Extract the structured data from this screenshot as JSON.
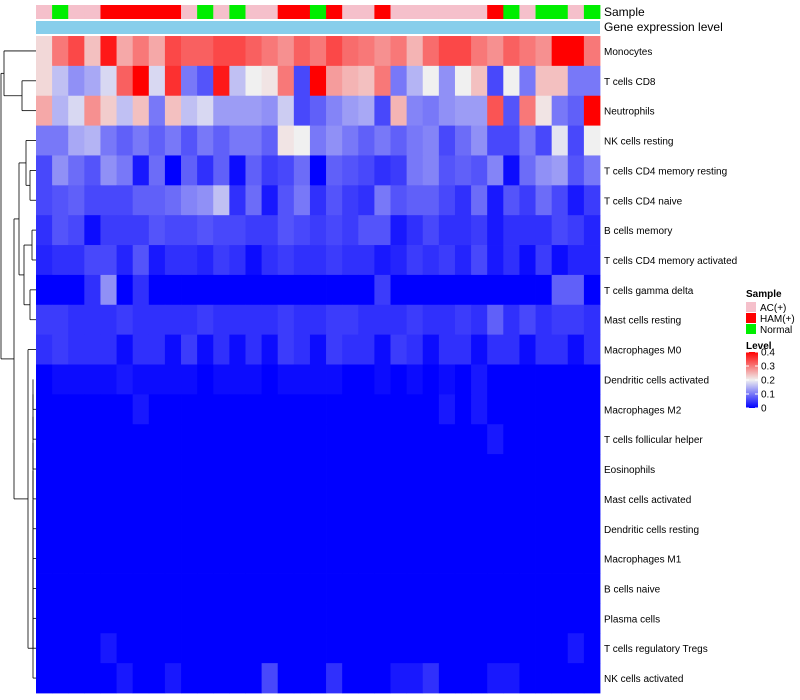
{
  "chart_data": {
    "type": "heatmap",
    "title": "",
    "annotation_tracks": [
      "Sample",
      "Gene expression level"
    ],
    "row_labels": [
      "Monocytes",
      "T cells CD8",
      "Neutrophils",
      "NK cells resting",
      "T cells CD4 memory resting",
      "T cells CD4 naive",
      "B cells memory",
      "T cells CD4 memory activated",
      "T cells gamma delta",
      "Mast cells resting",
      "Macrophages M0",
      "Dendritic cells activated",
      "Macrophages M2",
      "T cells follicular helper",
      "Eosinophils",
      "Mast cells activated",
      "Dendritic cells resting",
      "Macrophages M1",
      "B cells naive",
      "Plasma cells",
      "T cells regulatory  Tregs",
      "NK cells activated"
    ],
    "sample_groups": [
      "AC(+)",
      "Normal",
      "AC(+)",
      "AC(+)",
      "HAM(+)",
      "HAM(+)",
      "HAM(+)",
      "HAM(+)",
      "HAM(+)",
      "AC(+)",
      "Normal",
      "AC(+)",
      "Normal",
      "AC(+)",
      "AC(+)",
      "HAM(+)",
      "HAM(+)",
      "Normal",
      "HAM(+)",
      "AC(+)",
      "AC(+)",
      "HAM(+)",
      "AC(+)",
      "AC(+)",
      "AC(+)",
      "AC(+)",
      "AC(+)",
      "AC(+)",
      "HAM(+)",
      "Normal",
      "AC(+)",
      "Normal",
      "Normal",
      "AC(+)",
      "Normal"
    ],
    "values": [
      [
        0.22,
        0.3,
        0.34,
        0.24,
        0.38,
        0.26,
        0.3,
        0.26,
        0.34,
        0.32,
        0.32,
        0.34,
        0.34,
        0.32,
        0.3,
        0.28,
        0.32,
        0.3,
        0.34,
        0.31,
        0.3,
        0.28,
        0.3,
        0.25,
        0.31,
        0.34,
        0.34,
        0.3,
        0.28,
        0.32,
        0.3,
        0.28,
        0.4,
        0.4,
        0.3
      ],
      [
        0.22,
        0.16,
        0.12,
        0.14,
        0.18,
        0.32,
        0.4,
        0.18,
        0.36,
        0.1,
        0.07,
        0.38,
        0.16,
        0.2,
        0.21,
        0.3,
        0.06,
        0.4,
        0.27,
        0.25,
        0.24,
        0.3,
        0.1,
        0.15,
        0.2,
        0.12,
        0.2,
        0.24,
        0.06,
        0.2,
        0.1,
        0.24,
        0.24,
        0.1,
        0.1
      ],
      [
        0.26,
        0.15,
        0.18,
        0.28,
        0.23,
        0.16,
        0.24,
        0.1,
        0.24,
        0.16,
        0.18,
        0.13,
        0.13,
        0.13,
        0.12,
        0.17,
        0.06,
        0.08,
        0.11,
        0.13,
        0.14,
        0.06,
        0.25,
        0.11,
        0.1,
        0.12,
        0.13,
        0.13,
        0.33,
        0.07,
        0.3,
        0.21,
        0.1,
        0.08,
        0.4
      ],
      [
        0.1,
        0.1,
        0.14,
        0.15,
        0.1,
        0.08,
        0.1,
        0.08,
        0.1,
        0.07,
        0.1,
        0.08,
        0.1,
        0.1,
        0.08,
        0.21,
        0.2,
        0.1,
        0.12,
        0.1,
        0.08,
        0.1,
        0.08,
        0.1,
        0.11,
        0.06,
        0.09,
        0.12,
        0.06,
        0.06,
        0.1,
        0.06,
        0.19,
        0.06,
        0.2
      ],
      [
        0.06,
        0.12,
        0.09,
        0.07,
        0.12,
        0.1,
        0.02,
        0.09,
        0.0,
        0.08,
        0.04,
        0.08,
        0.01,
        0.08,
        0.05,
        0.06,
        0.09,
        0.0,
        0.08,
        0.07,
        0.06,
        0.04,
        0.05,
        0.1,
        0.11,
        0.07,
        0.08,
        0.07,
        0.11,
        0.01,
        0.09,
        0.12,
        0.13,
        0.07,
        0.1
      ],
      [
        0.06,
        0.07,
        0.08,
        0.06,
        0.06,
        0.06,
        0.08,
        0.08,
        0.09,
        0.11,
        0.12,
        0.16,
        0.04,
        0.09,
        0.02,
        0.07,
        0.1,
        0.04,
        0.07,
        0.05,
        0.04,
        0.1,
        0.07,
        0.08,
        0.08,
        0.06,
        0.04,
        0.09,
        0.02,
        0.07,
        0.05,
        0.09,
        0.06,
        0.02,
        0.05
      ],
      [
        0.04,
        0.07,
        0.06,
        0.01,
        0.05,
        0.05,
        0.05,
        0.07,
        0.06,
        0.06,
        0.07,
        0.06,
        0.06,
        0.05,
        0.05,
        0.07,
        0.06,
        0.05,
        0.06,
        0.05,
        0.07,
        0.07,
        0.02,
        0.04,
        0.06,
        0.04,
        0.04,
        0.05,
        0.02,
        0.04,
        0.04,
        0.04,
        0.06,
        0.05,
        0.03
      ],
      [
        0.03,
        0.04,
        0.04,
        0.06,
        0.06,
        0.03,
        0.07,
        0.02,
        0.04,
        0.04,
        0.03,
        0.05,
        0.04,
        0.01,
        0.04,
        0.05,
        0.04,
        0.04,
        0.05,
        0.04,
        0.04,
        0.02,
        0.03,
        0.05,
        0.04,
        0.05,
        0.03,
        0.06,
        0.02,
        0.04,
        0.01,
        0.05,
        0.01,
        0.03,
        0.03
      ],
      [
        0.0,
        0.0,
        0.0,
        0.04,
        0.12,
        0.0,
        0.04,
        0.0,
        0.0,
        0.0,
        0.0,
        0.0,
        0.0,
        0.0,
        0.0,
        0.0,
        0.0,
        0.0,
        0.0,
        0.0,
        0.0,
        0.05,
        0.0,
        0.0,
        0.0,
        0.0,
        0.0,
        0.0,
        0.0,
        0.0,
        0.0,
        0.0,
        0.08,
        0.08,
        0.0
      ],
      [
        0.05,
        0.05,
        0.04,
        0.04,
        0.04,
        0.05,
        0.04,
        0.04,
        0.04,
        0.04,
        0.05,
        0.04,
        0.04,
        0.04,
        0.04,
        0.05,
        0.04,
        0.04,
        0.05,
        0.05,
        0.04,
        0.04,
        0.04,
        0.05,
        0.04,
        0.04,
        0.05,
        0.04,
        0.08,
        0.04,
        0.06,
        0.04,
        0.05,
        0.05,
        0.04
      ],
      [
        0.04,
        0.05,
        0.04,
        0.04,
        0.04,
        0.01,
        0.04,
        0.04,
        0.01,
        0.05,
        0.01,
        0.04,
        0.01,
        0.04,
        0.01,
        0.05,
        0.04,
        0.01,
        0.05,
        0.04,
        0.04,
        0.01,
        0.05,
        0.04,
        0.01,
        0.04,
        0.04,
        0.01,
        0.04,
        0.04,
        0.01,
        0.04,
        0.04,
        0.01,
        0.04
      ],
      [
        0.0,
        0.01,
        0.01,
        0.01,
        0.01,
        0.02,
        0.01,
        0.01,
        0.01,
        0.01,
        0.0,
        0.01,
        0.01,
        0.01,
        0.0,
        0.01,
        0.01,
        0.01,
        0.01,
        0.0,
        0.0,
        0.01,
        0.0,
        0.01,
        0.0,
        0.01,
        0.0,
        0.02,
        0.0,
        0.0,
        0.0,
        0.0,
        0.0,
        0.0,
        0.0
      ],
      [
        0.0,
        0.0,
        0.0,
        0.0,
        0.0,
        0.0,
        0.02,
        0.0,
        0.0,
        0.0,
        0.0,
        0.0,
        0.0,
        0.0,
        0.0,
        0.0,
        0.0,
        0.0,
        0.0,
        0.0,
        0.0,
        0.0,
        0.0,
        0.0,
        0.0,
        0.02,
        0.0,
        0.02,
        0.0,
        0.0,
        0.0,
        0.0,
        0.0,
        0.0,
        0.0
      ],
      [
        0.0,
        0.0,
        0.0,
        0.0,
        0.0,
        0.0,
        0.0,
        0.0,
        0.0,
        0.0,
        0.0,
        0.0,
        0.0,
        0.0,
        0.0,
        0.0,
        0.0,
        0.0,
        0.0,
        0.0,
        0.0,
        0.0,
        0.0,
        0.0,
        0.0,
        0.0,
        0.0,
        0.0,
        0.02,
        0.0,
        0.0,
        0.0,
        0.0,
        0.0,
        0.0
      ],
      [
        0.0,
        0.0,
        0.0,
        0.0,
        0.0,
        0.0,
        0.0,
        0.0,
        0.0,
        0.0,
        0.0,
        0.0,
        0.0,
        0.0,
        0.0,
        0.0,
        0.0,
        0.0,
        0.0,
        0.0,
        0.0,
        0.0,
        0.0,
        0.0,
        0.0,
        0.0,
        0.0,
        0.0,
        0.0,
        0.0,
        0.0,
        0.0,
        0.0,
        0.0,
        0.0
      ],
      [
        0.0,
        0.0,
        0.0,
        0.0,
        0.0,
        0.0,
        0.0,
        0.0,
        0.0,
        0.0,
        0.0,
        0.0,
        0.0,
        0.0,
        0.0,
        0.0,
        0.0,
        0.0,
        0.0,
        0.0,
        0.0,
        0.0,
        0.0,
        0.0,
        0.0,
        0.0,
        0.0,
        0.0,
        0.0,
        0.0,
        0.0,
        0.0,
        0.0,
        0.0,
        0.0
      ],
      [
        0.0,
        0.0,
        0.0,
        0.0,
        0.0,
        0.0,
        0.0,
        0.0,
        0.0,
        0.0,
        0.0,
        0.0,
        0.0,
        0.0,
        0.0,
        0.0,
        0.0,
        0.0,
        0.0,
        0.0,
        0.0,
        0.0,
        0.0,
        0.0,
        0.0,
        0.0,
        0.0,
        0.0,
        0.0,
        0.0,
        0.0,
        0.0,
        0.0,
        0.0,
        0.0
      ],
      [
        0.0,
        0.0,
        0.0,
        0.0,
        0.0,
        0.0,
        0.0,
        0.0,
        0.0,
        0.0,
        0.0,
        0.0,
        0.0,
        0.0,
        0.0,
        0.0,
        0.0,
        0.0,
        0.0,
        0.0,
        0.0,
        0.0,
        0.0,
        0.0,
        0.0,
        0.0,
        0.0,
        0.0,
        0.0,
        0.0,
        0.0,
        0.0,
        0.0,
        0.0,
        0.0
      ],
      [
        0.0,
        0.0,
        0.0,
        0.0,
        0.0,
        0.0,
        0.0,
        0.0,
        0.0,
        0.0,
        0.0,
        0.0,
        0.0,
        0.0,
        0.0,
        0.0,
        0.0,
        0.0,
        0.0,
        0.0,
        0.0,
        0.0,
        0.0,
        0.0,
        0.0,
        0.0,
        0.0,
        0.0,
        0.0,
        0.0,
        0.0,
        0.0,
        0.0,
        0.0,
        0.0
      ],
      [
        0.0,
        0.0,
        0.0,
        0.0,
        0.0,
        0.0,
        0.0,
        0.0,
        0.0,
        0.0,
        0.0,
        0.0,
        0.0,
        0.0,
        0.0,
        0.0,
        0.0,
        0.0,
        0.0,
        0.0,
        0.0,
        0.0,
        0.0,
        0.0,
        0.0,
        0.0,
        0.0,
        0.0,
        0.0,
        0.0,
        0.0,
        0.0,
        0.0,
        0.0,
        0.0
      ],
      [
        0.0,
        0.0,
        0.0,
        0.0,
        0.02,
        0.0,
        0.0,
        0.0,
        0.0,
        0.0,
        0.0,
        0.0,
        0.0,
        0.0,
        0.0,
        0.0,
        0.0,
        0.0,
        0.0,
        0.0,
        0.0,
        0.0,
        0.0,
        0.0,
        0.0,
        0.0,
        0.0,
        0.0,
        0.0,
        0.0,
        0.0,
        0.0,
        0.0,
        0.02,
        0.0
      ],
      [
        0.0,
        0.0,
        0.0,
        0.0,
        0.0,
        0.02,
        0.0,
        0.0,
        0.02,
        0.0,
        0.0,
        0.0,
        0.0,
        0.0,
        0.06,
        0.0,
        0.0,
        0.0,
        0.04,
        0.0,
        0.0,
        0.0,
        0.02,
        0.02,
        0.04,
        0.0,
        0.0,
        0.0,
        0.02,
        0.02,
        0.0,
        0.0,
        0.0,
        0.0,
        0.0
      ]
    ],
    "legend": {
      "sample_title": "Sample",
      "sample_entries": [
        {
          "label": "AC(+)",
          "color": "#f5c0cb"
        },
        {
          "label": "HAM(+)",
          "color": "#ff0000"
        },
        {
          "label": "Normal",
          "color": "#00ee00"
        }
      ],
      "level_title": "Level",
      "level_ticks": [
        {
          "value": 0.4,
          "label": "0.4"
        },
        {
          "value": 0.3,
          "label": "0.3"
        },
        {
          "value": 0.2,
          "label": "0.2"
        },
        {
          "value": 0.1,
          "label": "0.1"
        },
        {
          "value": 0,
          "label": "0"
        }
      ],
      "level_range": [
        0,
        0.4
      ]
    },
    "colors": {
      "low": "#0000ff",
      "mid": "#f0f0f0",
      "high": "#ff0000",
      "gene_expression_bar": "#87ceeb"
    }
  }
}
